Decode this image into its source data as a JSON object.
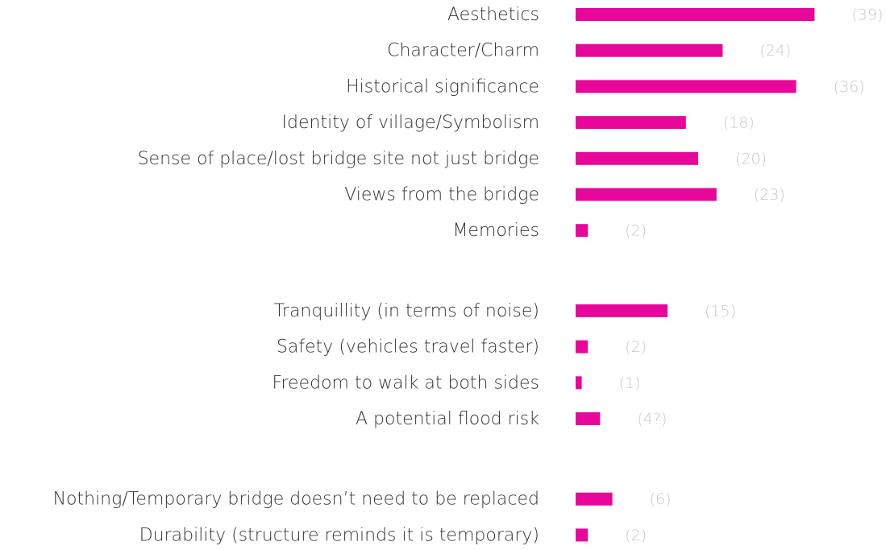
{
  "chart_data": [
    {
      "type": "bar",
      "color": "#e8079a",
      "categories": [
        "Aesthetics",
        "Character/Charm",
        "Historical significance",
        "Identity of village/Symbolism",
        "Sense of place/lost bridge site not just bridge",
        "Views from the bridge",
        "Memories"
      ],
      "values": [
        39,
        24,
        36,
        18,
        20,
        23,
        2
      ],
      "value_labels": [
        "(39)",
        "(24)",
        "(36)",
        "(18)",
        "(20)",
        "(23)",
        "(2)"
      ]
    },
    {
      "type": "bar",
      "color": "#e8079a",
      "categories": [
        "Tranquillity (in terms of noise)",
        "Safety (vehicles travel faster)",
        "Freedom to walk at both sides",
        "A potential flood risk"
      ],
      "values": [
        15,
        2,
        1,
        4
      ],
      "value_labels": [
        "(15)",
        "(2)",
        "(1)",
        "(4?)"
      ]
    },
    {
      "type": "bar",
      "color": "#e8079a",
      "categories": [
        "Nothing/Temporary bridge doesn’t need to be replaced",
        "Durability (structure reminds it is temporary)"
      ],
      "values": [
        6,
        2
      ],
      "value_labels": [
        "(6)",
        "(2)"
      ]
    }
  ]
}
